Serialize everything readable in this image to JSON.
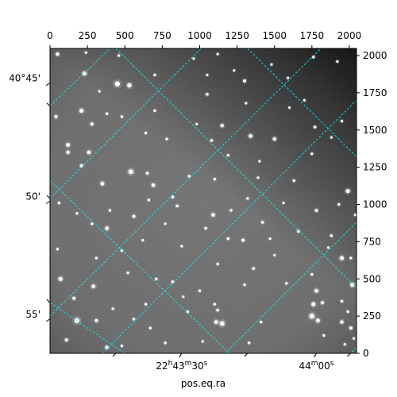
{
  "chart_data": {
    "type": "image",
    "xlabel": "pos.eq.ra",
    "x_pixel_axis": {
      "range": [
        0,
        2048
      ],
      "ticks": [
        0,
        250,
        500,
        750,
        1000,
        1250,
        1500,
        1750,
        2000
      ]
    },
    "y_pixel_axis": {
      "range": [
        0,
        2048
      ],
      "ticks": [
        0,
        250,
        500,
        750,
        1000,
        1250,
        1500,
        1750,
        2000
      ]
    },
    "dec_ticks": [
      {
        "label": "40°45'",
        "y_pix": 1815
      },
      {
        "label": "50'",
        "y_pix": 1022
      },
      {
        "label": "55'",
        "y_pix": 230
      }
    ],
    "ra_ticks": [
      {
        "label_html": "22<sup>h</sup>43<sup>m</sup>30<sup>s</sup>",
        "label": "22h43m30s",
        "x_pix": 880
      },
      {
        "label_html": "44<sup>m</sup>00<sup>s</sup>",
        "label": "44m00s",
        "x_pix": 1780
      }
    ],
    "grid": {
      "color": "#00ffff",
      "lines_slope_pos": [
        [
          [
            0,
            1040
          ],
          [
            1010,
            2048
          ]
        ],
        [
          [
            0,
            250
          ],
          [
            1810,
            2048
          ]
        ],
        [
          [
            350,
            0
          ],
          [
            2048,
            1700
          ]
        ],
        [
          [
            1170,
            0
          ],
          [
            2048,
            880
          ]
        ]
      ],
      "lines_slope_neg": [
        [
          [
            0,
            1660
          ],
          [
            400,
            2048
          ]
        ],
        [
          [
            440,
            2048
          ],
          [
            2048,
            440
          ]
        ],
        [
          [
            1320,
            2048
          ],
          [
            2048,
            1320
          ]
        ],
        [
          [
            0,
            340
          ],
          [
            500,
            0
          ]
        ],
        [
          [
            0,
            1160
          ],
          [
            1200,
            0
          ]
        ],
        [
          [
            2048,
            40
          ],
          [
            2008,
            0
          ]
        ]
      ]
    },
    "stars": [
      [
        50,
        2010,
        2.2
      ],
      [
        460,
        2000,
        1.6
      ],
      [
        1120,
        2010,
        1.5
      ],
      [
        1760,
        1990,
        1.7
      ],
      [
        1920,
        1960,
        1.6
      ],
      [
        230,
        1880,
        2.6
      ],
      [
        450,
        1810,
        3.2
      ],
      [
        530,
        1800,
        2.8
      ],
      [
        700,
        1870,
        1.6
      ],
      [
        1050,
        1740,
        1.8
      ],
      [
        1300,
        1830,
        2.0
      ],
      [
        1590,
        1850,
        1.5
      ],
      [
        40,
        1590,
        2.0
      ],
      [
        210,
        1630,
        2.6
      ],
      [
        380,
        1610,
        1.6
      ],
      [
        700,
        1630,
        1.6
      ],
      [
        1150,
        1530,
        2.2
      ],
      [
        1310,
        1680,
        1.5
      ],
      [
        1770,
        1520,
        1.8
      ],
      [
        1950,
        1560,
        1.6
      ],
      [
        120,
        1400,
        2.4
      ],
      [
        280,
        1540,
        2.0
      ],
      [
        480,
        1590,
        1.6
      ],
      [
        640,
        1480,
        1.6
      ],
      [
        780,
        1440,
        1.6
      ],
      [
        1080,
        1430,
        1.7
      ],
      [
        1340,
        1460,
        2.4
      ],
      [
        1500,
        1440,
        2.3
      ],
      [
        1750,
        1340,
        1.6
      ],
      [
        120,
        1350,
        2.2
      ],
      [
        260,
        1350,
        2.4
      ],
      [
        540,
        1220,
        3.0
      ],
      [
        650,
        1210,
        1.8
      ],
      [
        930,
        1190,
        1.6
      ],
      [
        1190,
        1330,
        1.6
      ],
      [
        1400,
        1290,
        1.5
      ],
      [
        210,
        1260,
        2.0
      ],
      [
        350,
        1140,
        2.5
      ],
      [
        690,
        1130,
        2.3
      ],
      [
        820,
        1050,
        1.7
      ],
      [
        1100,
        1170,
        1.6
      ],
      [
        1320,
        1040,
        1.6
      ],
      [
        1630,
        1160,
        1.7
      ],
      [
        1990,
        1090,
        2.6
      ],
      [
        60,
        1010,
        1.7
      ],
      [
        400,
        960,
        1.6
      ],
      [
        560,
        920,
        2.0
      ],
      [
        660,
        1030,
        1.6
      ],
      [
        850,
        990,
        1.8
      ],
      [
        1090,
        930,
        2.3
      ],
      [
        1210,
        960,
        1.6
      ],
      [
        1420,
        880,
        1.8
      ],
      [
        1780,
        960,
        2.0
      ],
      [
        1930,
        1000,
        1.7
      ],
      [
        2040,
        930,
        1.6
      ],
      [
        280,
        870,
        1.6
      ],
      [
        380,
        840,
        2.4
      ],
      [
        1040,
        840,
        1.7
      ],
      [
        1190,
        770,
        1.7
      ],
      [
        1290,
        760,
        2.0
      ],
      [
        1470,
        770,
        1.5
      ],
      [
        1660,
        820,
        1.8
      ],
      [
        1880,
        790,
        1.7
      ],
      [
        50,
        700,
        1.6
      ],
      [
        310,
        640,
        1.6
      ],
      [
        480,
        690,
        1.6
      ],
      [
        880,
        720,
        1.5
      ],
      [
        1120,
        600,
        1.6
      ],
      [
        1360,
        570,
        1.8
      ],
      [
        1750,
        530,
        1.6
      ],
      [
        1860,
        710,
        1.5
      ],
      [
        1950,
        640,
        2.6
      ],
      [
        2010,
        640,
        1.6
      ],
      [
        70,
        500,
        2.6
      ],
      [
        290,
        450,
        2.4
      ],
      [
        520,
        540,
        1.6
      ],
      [
        710,
        500,
        1.6
      ],
      [
        820,
        480,
        1.8
      ],
      [
        1000,
        420,
        1.6
      ],
      [
        1100,
        330,
        1.6
      ],
      [
        1300,
        460,
        1.6
      ],
      [
        1580,
        470,
        1.6
      ],
      [
        1780,
        420,
        2.4
      ],
      [
        1950,
        350,
        1.7
      ],
      [
        2020,
        460,
        2.6
      ],
      [
        160,
        370,
        2.0
      ],
      [
        420,
        300,
        1.6
      ],
      [
        640,
        330,
        1.6
      ],
      [
        920,
        280,
        1.6
      ],
      [
        1120,
        290,
        1.8
      ],
      [
        1760,
        330,
        2.6
      ],
      [
        1820,
        340,
        2.0
      ],
      [
        1990,
        280,
        1.6
      ],
      [
        2010,
        170,
        2.0
      ],
      [
        180,
        220,
        3.2
      ],
      [
        310,
        220,
        2.0
      ],
      [
        560,
        230,
        1.6
      ],
      [
        670,
        170,
        1.6
      ],
      [
        1110,
        210,
        2.4
      ],
      [
        1150,
        200,
        3.0
      ],
      [
        1410,
        210,
        1.6
      ],
      [
        1750,
        250,
        3.2
      ],
      [
        1790,
        220,
        2.5
      ],
      [
        1950,
        210,
        2.2
      ],
      [
        110,
        90,
        2.0
      ],
      [
        380,
        40,
        2.2
      ],
      [
        480,
        50,
        1.6
      ],
      [
        770,
        70,
        1.6
      ],
      [
        1020,
        80,
        1.5
      ],
      [
        1330,
        70,
        1.6
      ],
      [
        1830,
        120,
        1.6
      ],
      [
        1970,
        60,
        1.6
      ],
      [
        2030,
        100,
        1.5
      ],
      [
        890,
        380,
        1.5
      ],
      [
        620,
        760,
        1.5
      ],
      [
        1500,
        660,
        1.5
      ],
      [
        980,
        1540,
        1.5
      ],
      [
        1600,
        1650,
        1.5
      ],
      [
        1880,
        1450,
        1.5
      ],
      [
        330,
        1760,
        1.5
      ],
      [
        180,
        940,
        1.5
      ],
      [
        1390,
        1180,
        1.5
      ],
      [
        1560,
        1010,
        1.5
      ],
      [
        770,
        870,
        1.5
      ],
      [
        1050,
        1870,
        1.5
      ],
      [
        1230,
        1900,
        1.5
      ],
      [
        1480,
        1940,
        1.5
      ],
      [
        240,
        2020,
        1.5
      ],
      [
        960,
        1980,
        1.5
      ],
      [
        1700,
        1700,
        1.5
      ]
    ]
  }
}
